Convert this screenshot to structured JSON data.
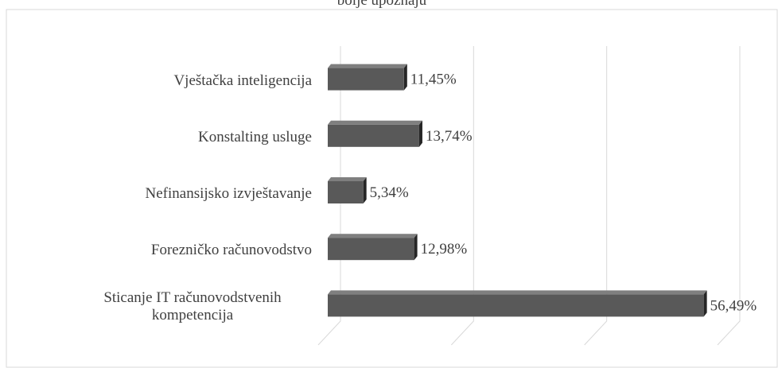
{
  "chart_data": {
    "type": "bar",
    "orientation": "horizontal",
    "title": "bolje upoznaju",
    "categories": [
      "Vještačka inteligencija",
      "Konstalting usluge",
      "Nefinansijsko izvještavanje",
      "Forezničko računovodstvo",
      "Sticanje IT računovodstvenih kompetencija"
    ],
    "values": [
      11.45,
      13.74,
      5.34,
      12.98,
      56.49
    ],
    "value_labels": [
      "11,45%",
      "13,74%",
      "5,34%",
      "12,98%",
      "56,49%"
    ],
    "color": "#595959",
    "xlim": [
      0,
      60
    ],
    "xticks": [
      0,
      20,
      40,
      60
    ],
    "grid": true
  }
}
